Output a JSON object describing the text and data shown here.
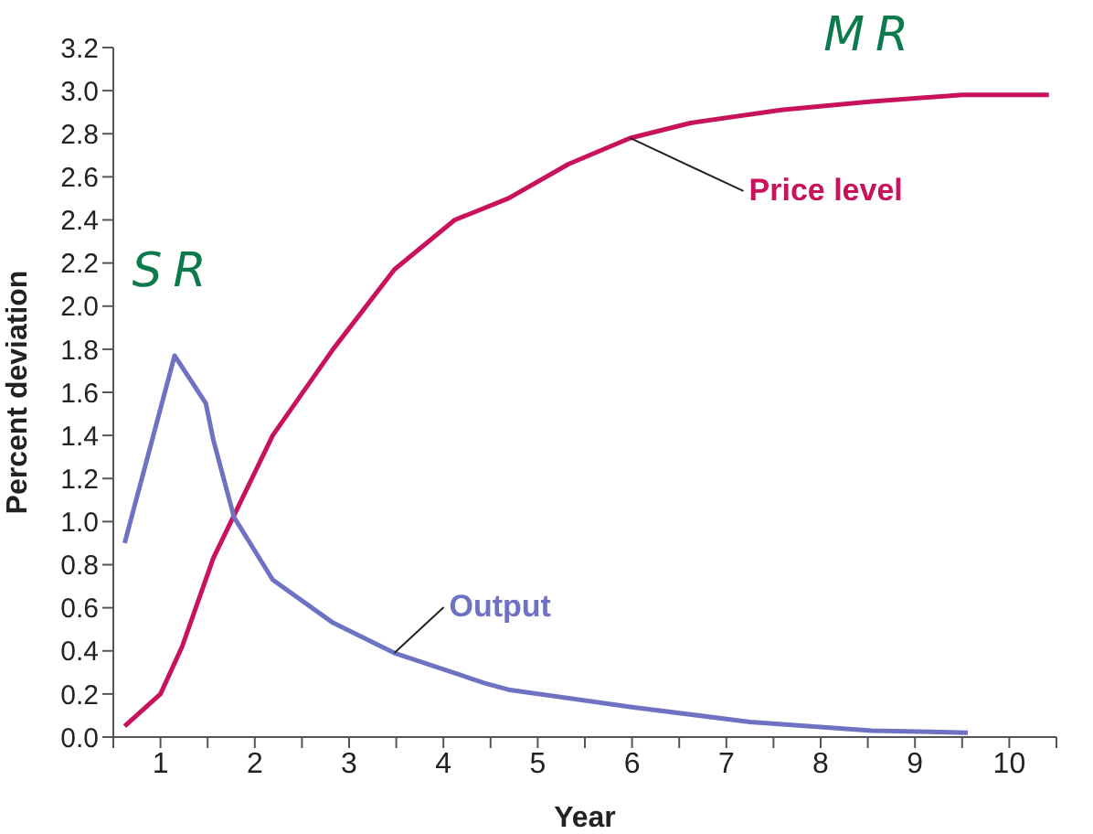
{
  "chart_data": {
    "type": "line",
    "xlabel": "Year",
    "ylabel": "Percent deviation",
    "xlim": [
      0.5,
      10.5
    ],
    "xticks": [
      {
        "value": 0.5,
        "label": null
      },
      1,
      {
        "value": 1.5,
        "label": null
      },
      2,
      {
        "value": 2.5,
        "label": null
      },
      3,
      {
        "value": 3.5,
        "label": null
      },
      4,
      {
        "value": 4.5,
        "label": null
      },
      5,
      {
        "value": 5.5,
        "label": null
      },
      6,
      {
        "value": 6.5,
        "label": null
      },
      7,
      {
        "value": 7.5,
        "label": null
      },
      8,
      {
        "value": 8.5,
        "label": null
      },
      9,
      {
        "value": 9.5,
        "label": null
      },
      10,
      {
        "value": 10.5,
        "label": null
      }
    ],
    "ylim": [
      0,
      3.2
    ],
    "yticks": [
      {
        "value": 0,
        "label": "0.0"
      },
      {
        "value": 0.2,
        "label": "0.2"
      },
      {
        "value": 0.4,
        "label": "0.4"
      },
      {
        "value": 0.6,
        "label": "0.6"
      },
      {
        "value": 0.8,
        "label": "0.8"
      },
      {
        "value": 1,
        "label": "1.0"
      },
      {
        "value": 1.2,
        "label": "1.2"
      },
      {
        "value": 1.4,
        "label": "1.4"
      },
      {
        "value": 1.6,
        "label": "1.6"
      },
      {
        "value": 1.8,
        "label": "1.8"
      },
      {
        "value": 2,
        "label": "2.0"
      },
      {
        "value": 2.2,
        "label": "2.2"
      },
      {
        "value": 2.4,
        "label": "2.4"
      },
      {
        "value": 2.6,
        "label": "2.6"
      },
      {
        "value": 2.8,
        "label": "2.8"
      },
      {
        "value": 3,
        "label": "3.0"
      },
      {
        "value": 3.2,
        "label": "3.2"
      }
    ],
    "series": [
      {
        "name": "Price level",
        "color": "#c8125c",
        "x": [
          0.62,
          1.0,
          1.23,
          1.56,
          1.87,
          2.19,
          2.83,
          3.48,
          4.12,
          4.69,
          5.33,
          5.98,
          6.62,
          7.58,
          8.54,
          9.5,
          10.42
        ],
        "values": [
          0.05,
          0.2,
          0.42,
          0.83,
          1.11,
          1.4,
          1.8,
          2.17,
          2.4,
          2.5,
          2.66,
          2.78,
          2.85,
          2.91,
          2.95,
          2.98,
          2.98
        ]
      },
      {
        "name": "Output",
        "color": "#6e72c2",
        "x": [
          0.62,
          1.15,
          1.48,
          1.56,
          1.78,
          2.19,
          2.83,
          3.48,
          4.44,
          4.69,
          5.98,
          7.25,
          8.54,
          9.56
        ],
        "values": [
          0.9,
          1.77,
          1.55,
          1.38,
          1.02,
          0.73,
          0.53,
          0.39,
          0.25,
          0.22,
          0.14,
          0.07,
          0.03,
          0.02
        ]
      }
    ],
    "annotations": [
      {
        "text": "SR",
        "x": 1.15,
        "y": 1.77
      },
      {
        "text": "MR",
        "x": 8.54,
        "y": 2.95
      }
    ]
  }
}
